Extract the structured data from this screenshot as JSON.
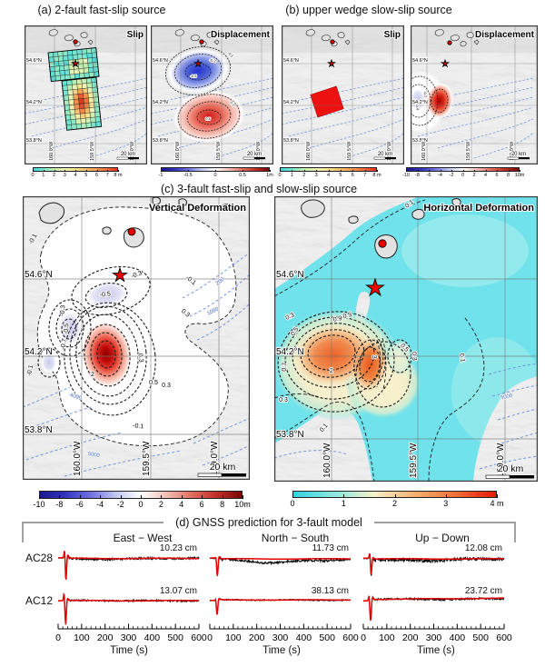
{
  "panels": {
    "a": {
      "title": "(a) 2-fault fast-slip source"
    },
    "b": {
      "title": "(b) upper wedge slow-slip source"
    },
    "c": {
      "title": "(c) 3-fault fast-slip and slow-slip source"
    },
    "d": {
      "title": "(d) GNSS prediction for 3-fault model"
    }
  },
  "maps": {
    "lat_labels": [
      "54.6°N",
      "54.2°N",
      "53.8°N"
    ],
    "lon_labels": [
      "160.0°W",
      "159.5°W",
      "159.0°W"
    ],
    "scale_label": "20 km",
    "a_slip": {
      "corner": "Slip"
    },
    "a_disp": {
      "corner": "Displacement",
      "contour_labels": [
        "-0.1",
        "-0.2",
        "-0.5",
        "0.2",
        "0.5"
      ]
    },
    "b_slip": {
      "corner": "Slip"
    },
    "b_disp": {
      "corner": "Displacement",
      "contour_labels": [
        "-0.4",
        "-0.2"
      ]
    },
    "c_vert": {
      "corner": "Vertical Deformation",
      "contour_labels": [
        "-0.1",
        "-0.3",
        "-0.1",
        "-0.5",
        "-0.3",
        "-0.5",
        "-0.7",
        "0.3",
        "0.3",
        "2",
        "0.5",
        "0.3",
        "-0.1",
        "-0.1"
      ],
      "bathy_labels": [
        "200",
        "1000",
        "4000",
        "5000"
      ]
    },
    "c_horiz": {
      "corner": "Horizontal Deformation",
      "contour_labels": [
        "0.1",
        "0.3",
        "0.5",
        "0.7",
        "0.9",
        "0.5",
        "2",
        "3",
        "0.5",
        "0.3",
        "0.1",
        "0.1",
        "0.3"
      ],
      "bathy_labels": [
        "5000"
      ]
    }
  },
  "colorbars": {
    "a_slip": {
      "ticks": [
        "0",
        "1",
        "2",
        "3",
        "4",
        "5",
        "6",
        "7",
        "8 m"
      ]
    },
    "a_disp": {
      "ticks": [
        "-1",
        "-0.5",
        "0",
        "0.5",
        "1m"
      ]
    },
    "b_slip": {
      "ticks": [
        "0",
        "1",
        "2",
        "3",
        "4",
        "5",
        "6",
        "7",
        "8 m"
      ]
    },
    "b_disp": {
      "ticks": [
        "-10",
        "-8",
        "-6",
        "-4",
        "-2",
        "0",
        "2",
        "4",
        "6",
        "8",
        "10m"
      ]
    },
    "c_vert": {
      "ticks": [
        "-10",
        "-8",
        "-6",
        "-4",
        "-2",
        "0",
        "2",
        "4",
        "6",
        "8",
        "10m"
      ]
    },
    "c_horiz": {
      "ticks": [
        "0",
        "1",
        "2",
        "3",
        "4 m"
      ]
    }
  },
  "gnss": {
    "columns": [
      "East − West",
      "North − South",
      "Up − Down"
    ],
    "stations": [
      "AC28",
      "AC12"
    ],
    "offsets": [
      [
        "10.23 cm",
        "11.73 cm",
        "12.08 cm"
      ],
      [
        "13.07 cm",
        "38.13 cm",
        "23.72 cm"
      ]
    ],
    "xticks": [
      "0",
      "100",
      "200",
      "300",
      "400",
      "500",
      "600"
    ],
    "xlabel": "Time (s)"
  },
  "chart_data": [
    {
      "type": "line",
      "panel": "d",
      "title": "(d) GNSS prediction for 3-fault model",
      "stations": [
        "AC28",
        "AC12"
      ],
      "components": [
        "East − West",
        "North − South",
        "Up − Down"
      ],
      "series": [
        "observed (black)",
        "3-fault model prediction (red)"
      ],
      "x_range_s": [
        0,
        600
      ],
      "x_ticks_s": [
        0,
        100,
        200,
        300,
        400,
        500,
        600
      ],
      "xlabel": "Time (s)",
      "static_offsets_cm": [
        [
          10.23,
          11.73,
          12.08
        ],
        [
          13.07,
          38.13,
          23.72
        ]
      ],
      "waveform_shape": "flat pre-event, coseismic spike near t≈30 s, permanent static offset afterwards"
    },
    {
      "type": "heatmap",
      "panel": "a",
      "title": "Slip",
      "colorbar": {
        "range_m": [
          0,
          8
        ],
        "ticks": [
          0,
          1,
          2,
          3,
          4,
          5,
          6,
          7,
          8
        ]
      }
    },
    {
      "type": "heatmap",
      "panel": "a",
      "title": "Displacement",
      "colorbar": {
        "range_m": [
          -1,
          1
        ],
        "ticks": [
          -1,
          -0.5,
          0,
          0.5,
          1
        ]
      }
    },
    {
      "type": "heatmap",
      "panel": "b",
      "title": "Slip",
      "colorbar": {
        "range_m": [
          0,
          8
        ],
        "ticks": [
          0,
          1,
          2,
          3,
          4,
          5,
          6,
          7,
          8
        ]
      }
    },
    {
      "type": "heatmap",
      "panel": "b",
      "title": "Displacement",
      "colorbar": {
        "range_m": [
          -10,
          10
        ],
        "ticks": [
          -10,
          -8,
          -6,
          -4,
          -2,
          0,
          2,
          4,
          6,
          8,
          10
        ]
      }
    },
    {
      "type": "heatmap",
      "panel": "c",
      "title": "Vertical Deformation",
      "colorbar": {
        "range_m": [
          -10,
          10
        ],
        "ticks": [
          -10,
          -8,
          -6,
          -4,
          -2,
          0,
          2,
          4,
          6,
          8,
          10
        ]
      }
    },
    {
      "type": "heatmap",
      "panel": "c",
      "title": "Horizontal Deformation",
      "colorbar": {
        "range_m": [
          0,
          4
        ],
        "ticks": [
          0,
          1,
          2,
          3,
          4
        ]
      }
    }
  ],
  "colors": {
    "star": "#f40000",
    "dot": "#e80000",
    "observed_trace": "#000000",
    "model_trace": "#e60000",
    "bathy_line": "#6f8fd8",
    "ocean_cyan": "#6fe2ec",
    "slip_scale": [
      "#3fd6e0",
      "#7be8cf",
      "#c6efaf",
      "#eef3b4",
      "#f6e38c",
      "#f7c06a",
      "#f49b52",
      "#ee6a38",
      "#e63222"
    ],
    "disp_scale": [
      "#1a1a8c",
      "#3333c0",
      "#6f6fe0",
      "#c0c6f2",
      "#ffffff",
      "#f2c0b8",
      "#e07060",
      "#c03028",
      "#7a0606"
    ],
    "horiz_scale": [
      "#2fd3e3",
      "#8ae8dd",
      "#f4f0c8",
      "#f6b070",
      "#ef7038",
      "#e81800"
    ]
  }
}
